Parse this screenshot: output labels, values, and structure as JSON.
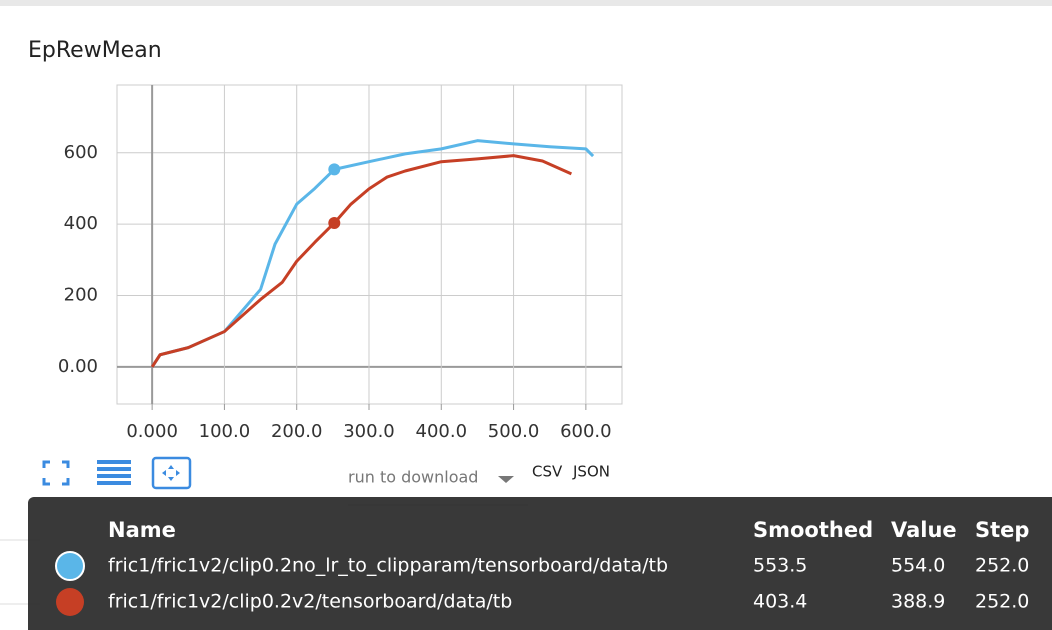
{
  "card": {
    "title": "EpRewMean"
  },
  "chart_data": {
    "type": "line",
    "xlim": [
      -48.6,
      650
    ],
    "ylim": [
      -104,
      790
    ],
    "xticks": [
      {
        "value": 0,
        "label": "0.000"
      },
      {
        "value": 100,
        "label": "100.0"
      },
      {
        "value": 200,
        "label": "200.0"
      },
      {
        "value": 300,
        "label": "300.0"
      },
      {
        "value": 400,
        "label": "400.0"
      },
      {
        "value": 500,
        "label": "500.0"
      },
      {
        "value": 600,
        "label": "600.0"
      }
    ],
    "yticks": [
      {
        "value": 0,
        "label": "0.00"
      },
      200,
      400,
      600
    ],
    "grid": true,
    "series": [
      {
        "name": "fric1/fric1v2/clip0.2no_lr_to_clipparam/tensorboard/data/tb",
        "color": "#5ab6e8",
        "x": [
          0,
          11,
          50,
          100,
          150,
          170,
          200,
          225,
          252,
          300,
          350,
          400,
          450,
          500,
          550,
          600,
          610
        ],
        "values": [
          0,
          34,
          54,
          99,
          217,
          344,
          456,
          500,
          553.5,
          575,
          597,
          611,
          634,
          625,
          617,
          611,
          591
        ]
      },
      {
        "name": "fric1/fric1v2/clip0.2v2/tensorboard/data/tb",
        "color": "#c63f25",
        "x": [
          0,
          11,
          50,
          100,
          150,
          180,
          200,
          225,
          252,
          275,
          300,
          325,
          350,
          400,
          450,
          500,
          540,
          580
        ],
        "values": [
          0,
          34,
          54,
          99,
          189,
          237,
          296,
          349,
          403.4,
          456,
          499,
          532,
          549,
          575,
          583,
          592,
          577,
          541
        ]
      }
    ]
  },
  "controls": {
    "download_placeholder": "run to download",
    "csv": "CSV",
    "json": "JSON"
  },
  "tooltip": {
    "headers": [
      "Name",
      "Smoothed",
      "Value",
      "Step"
    ],
    "rows": [
      [
        "fric1/fric1v2/clip0.2no_lr_to_clipparam/tensorboard/data/tb",
        "553.5",
        "554.0",
        "252.0"
      ],
      [
        "fric1/fric1v2/clip0.2v2/tensorboard/data/tb",
        "403.4",
        "388.9",
        "252.0"
      ]
    ]
  }
}
